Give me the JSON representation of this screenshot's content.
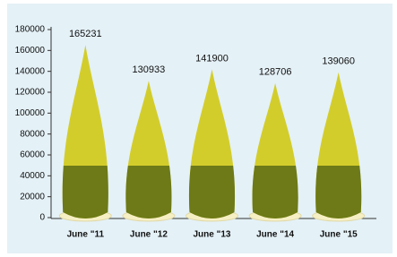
{
  "chart_data": {
    "type": "bar",
    "categories": [
      "June \"11",
      "June \"12",
      "June \"13",
      "June \"14",
      "June \"15"
    ],
    "values": [
      165231,
      130933,
      141900,
      128706,
      139060
    ],
    "color": "#d3cd2c",
    "ylim": [
      0,
      180000
    ],
    "yticks": [
      0,
      20000,
      40000,
      60000,
      80000,
      100000,
      120000,
      140000,
      160000,
      180000
    ]
  }
}
